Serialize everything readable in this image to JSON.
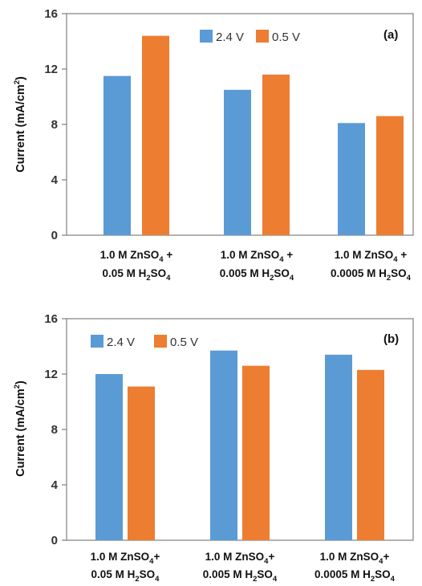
{
  "chart_data": [
    {
      "type": "bar",
      "panel_label": "(a)",
      "ylabel": "Current (mA/cm2)",
      "ylim": [
        0,
        16
      ],
      "yticks": [
        "0",
        "4",
        "8",
        "12",
        "16"
      ],
      "categories": [
        {
          "line1": "1.0 M ZnSO4 +",
          "line2": "0.05 M H2SO4"
        },
        {
          "line1": "1.0 M ZnSO4 +",
          "line2": "0.005 M H2SO4"
        },
        {
          "line1": "1.0 M ZnSO4 +",
          "line2": "0.0005 M H2SO4"
        }
      ],
      "series": [
        {
          "name": "2.4 V",
          "color": "#5b9bd5",
          "values": [
            11.5,
            10.5,
            8.1
          ]
        },
        {
          "name": "0.5 V",
          "color": "#ed7d31",
          "values": [
            14.4,
            11.6,
            8.6
          ]
        }
      ],
      "legend_position": "top-center",
      "grid": false
    },
    {
      "type": "bar",
      "panel_label": "(b)",
      "ylabel": "Current (mA/cm2)",
      "ylim": [
        0,
        16
      ],
      "yticks": [
        "0",
        "4",
        "8",
        "12",
        "16"
      ],
      "categories": [
        {
          "line1": "1.0 M ZnSO4+",
          "line2": "0.05 M H2SO4"
        },
        {
          "line1": "1.0 M ZnSO4+",
          "line2": "0.005 M H2SO4"
        },
        {
          "line1": "1.0 M ZnSO4+",
          "line2": "0.0005 M H2SO4"
        }
      ],
      "series": [
        {
          "name": "2.4 V",
          "color": "#5b9bd5",
          "values": [
            12.0,
            13.7,
            13.4
          ]
        },
        {
          "name": "0.5 V",
          "color": "#ed7d31",
          "values": [
            11.1,
            12.6,
            12.3
          ]
        }
      ],
      "legend_position": "top-left",
      "grid": false
    }
  ]
}
